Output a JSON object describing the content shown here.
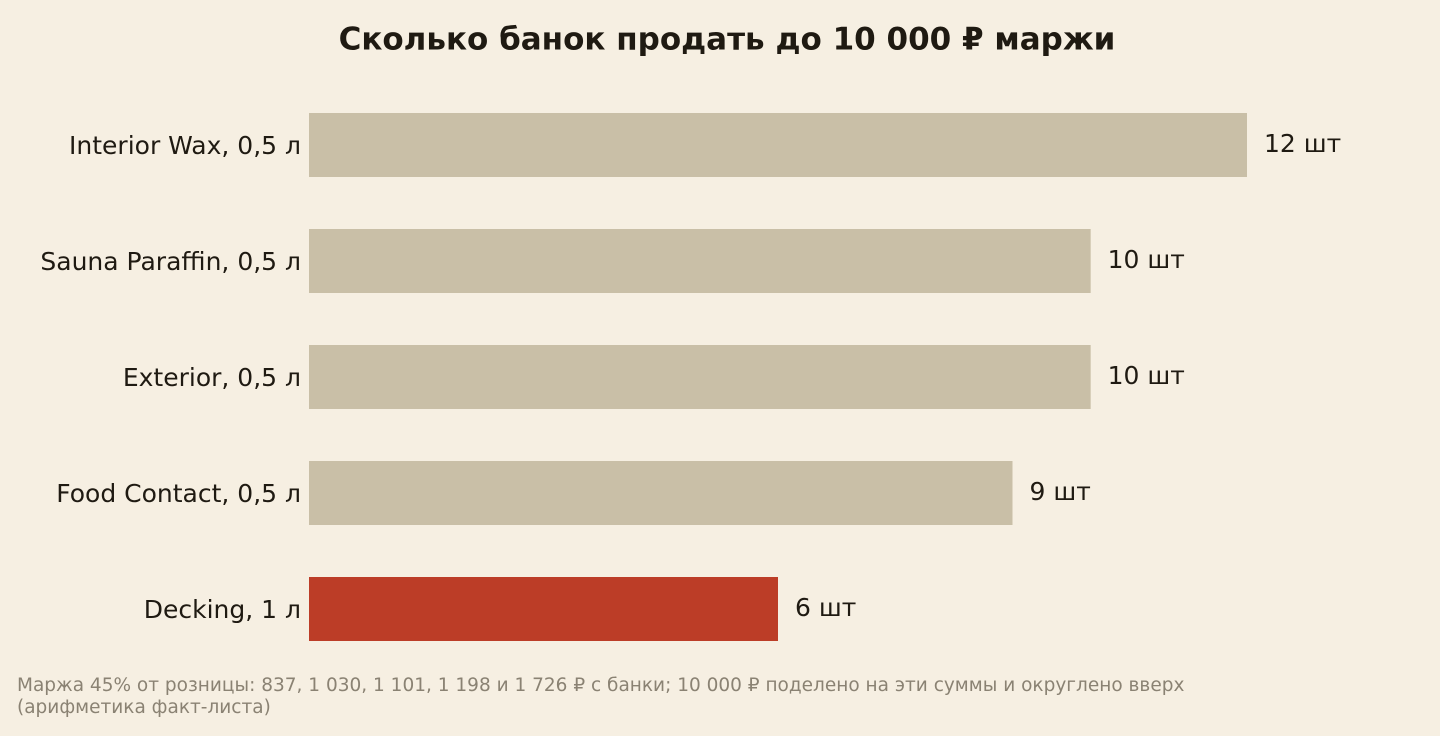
{
  "chart_data": {
    "type": "barh",
    "title": "Сколько банок продать до 10 000 ₽ маржи",
    "categories": [
      "Interior Wax, 0,5 л",
      "Sauna Paraffin, 0,5 л",
      "Exterior, 0,5 л",
      "Food Contact, 0,5 л",
      "Decking, 1 л"
    ],
    "values": [
      12,
      10,
      10,
      9,
      6
    ],
    "value_labels": [
      "12 шт",
      "10 шт",
      "10 шт",
      "9 шт",
      "6 шт"
    ],
    "colors": [
      "#c9bfa7",
      "#c9bfa7",
      "#c9bfa7",
      "#c9bfa7",
      "#bc3d27"
    ],
    "xlim": [
      0,
      12
    ],
    "note": "Маржа 45% от розницы: 837, 1 030, 1 101, 1 198 и 1 726 ₽ с банки; 10 000 ₽ поделено на эти суммы и округлено вверх (арифметика факт-листа)"
  }
}
